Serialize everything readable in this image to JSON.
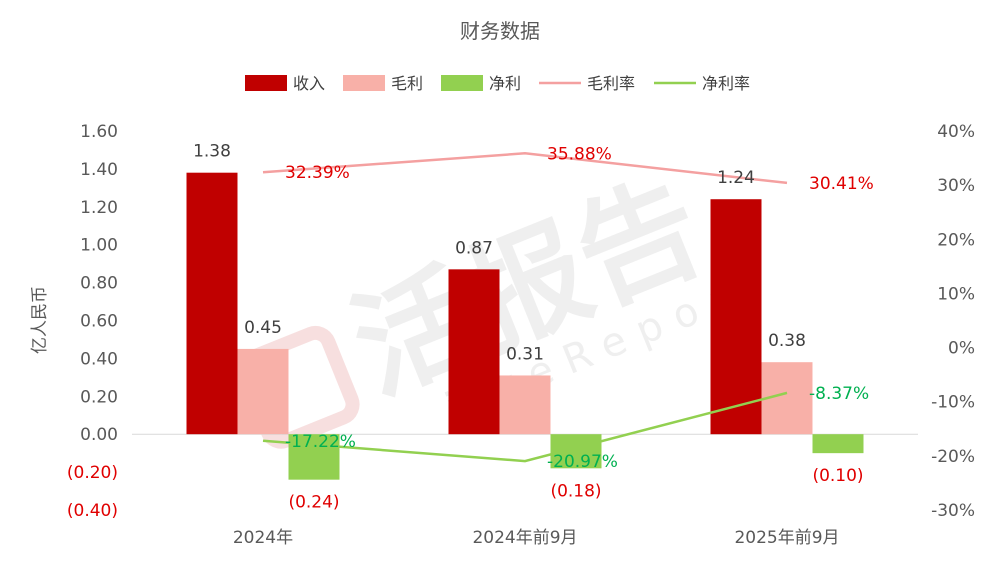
{
  "chart_data": {
    "type": "bar",
    "title": "财务数据",
    "ylabel": "亿人民币",
    "categories": [
      "2024年",
      "2024年前9月",
      "2025年前9月"
    ],
    "ylim": [
      -0.4,
      1.6
    ],
    "y_ticks": [
      "1.60",
      "1.40",
      "1.20",
      "1.00",
      "0.80",
      "0.60",
      "0.40",
      "0.20",
      "0.00",
      "(0.20)",
      "(0.40)"
    ],
    "y2lim": [
      -0.3,
      0.4
    ],
    "y2_ticks": [
      "40%",
      "30%",
      "20%",
      "10%",
      "0%",
      "-10%",
      "-20%",
      "-30%"
    ],
    "series": [
      {
        "name": "收入",
        "kind": "bar",
        "color": "#c00000",
        "values": [
          1.38,
          0.87,
          1.24
        ],
        "labels": [
          "1.38",
          "0.87",
          "1.24"
        ]
      },
      {
        "name": "毛利",
        "kind": "bar",
        "color": "#f8b0a8",
        "values": [
          0.45,
          0.31,
          0.38
        ],
        "labels": [
          "0.45",
          "0.31",
          "0.38"
        ]
      },
      {
        "name": "净利",
        "kind": "bar",
        "color": "#92d050",
        "values": [
          -0.24,
          -0.18,
          -0.1
        ],
        "labels": [
          "(0.24)",
          "(0.18)",
          "(0.10)"
        ]
      },
      {
        "name": "毛利率",
        "kind": "line",
        "axis": "right",
        "color": "#f4a0a0",
        "values": [
          0.3239,
          0.3588,
          0.3041
        ],
        "labels": [
          "32.39%",
          "35.88%",
          "30.41%"
        ]
      },
      {
        "name": "净利率",
        "kind": "line",
        "axis": "right",
        "color": "#92d050",
        "values": [
          -0.1722,
          -0.2097,
          -0.0837
        ],
        "labels": [
          "-17.22%",
          "-20.97%",
          "-8.37%"
        ]
      }
    ],
    "legend_position": "top",
    "grid": false
  }
}
